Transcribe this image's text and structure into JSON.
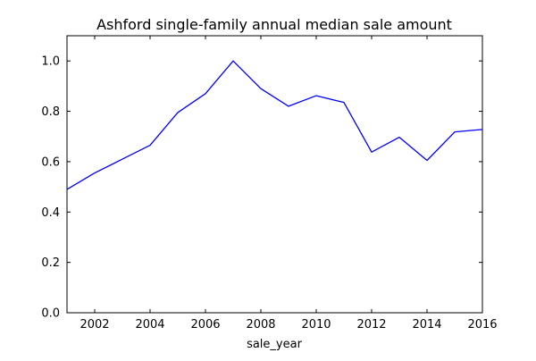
{
  "chart_data": {
    "type": "line",
    "title": "Ashford single-family annual median sale amount",
    "xlabel": "sale_year",
    "ylabel": "",
    "xlim": [
      2001,
      2016
    ],
    "ylim": [
      0.0,
      1.1
    ],
    "x_ticks": [
      2002,
      2004,
      2006,
      2008,
      2010,
      2012,
      2014,
      2016
    ],
    "x_tick_labels": [
      "2002",
      "2004",
      "2006",
      "2008",
      "2010",
      "2012",
      "2014",
      "2016"
    ],
    "y_ticks": [
      0.0,
      0.2,
      0.4,
      0.6,
      0.8,
      1.0
    ],
    "y_tick_labels": [
      "0.0",
      "0.2",
      "0.4",
      "0.6",
      "0.8",
      "1.0"
    ],
    "grid": false,
    "legend": "none",
    "series": [
      {
        "color": "#0000ff",
        "x": [
          2001,
          2002,
          2003,
          2004,
          2005,
          2006,
          2007,
          2008,
          2009,
          2010,
          2011,
          2012,
          2013,
          2014,
          2015,
          2016
        ],
        "y": [
          0.49,
          0.555,
          0.61,
          0.665,
          0.795,
          0.87,
          1.0,
          0.89,
          0.82,
          0.862,
          0.835,
          0.638,
          0.697,
          0.605,
          0.718,
          0.728
        ]
      }
    ]
  }
}
